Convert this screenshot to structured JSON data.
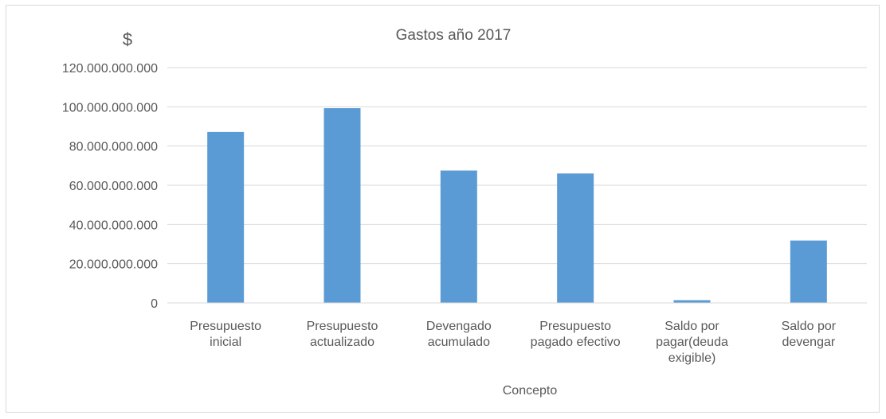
{
  "chart_data": {
    "type": "bar",
    "title": "Gastos año 2017",
    "ylabel": "$",
    "xlabel": "Concepto",
    "categories": [
      [
        "Presupuesto",
        "inicial"
      ],
      [
        "Presupuesto",
        "actualizado"
      ],
      [
        "Devengado",
        "acumulado"
      ],
      [
        "Presupuesto",
        "pagado efectivo"
      ],
      [
        "Saldo por",
        "pagar(deuda",
        "exigible)"
      ],
      [
        "Saldo por",
        "devengar"
      ]
    ],
    "values": [
      87200000000,
      99300000000,
      67500000000,
      66000000000,
      1400000000,
      31800000000
    ],
    "ylim": [
      0,
      120000000000
    ],
    "ticks": [
      0,
      20000000000,
      40000000000,
      60000000000,
      80000000000,
      100000000000,
      120000000000
    ],
    "tick_labels": [
      "0",
      "20.000.000.000",
      "40.000.000.000",
      "60.000.000.000",
      "80.000.000.000",
      "100.000.000.000",
      "120.000.000.000"
    ],
    "bar_color": "#5b9bd5",
    "grid": true,
    "legend": "none"
  }
}
